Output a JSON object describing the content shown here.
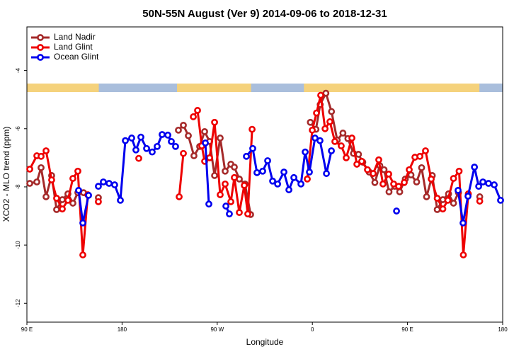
{
  "chart_data": {
    "type": "line",
    "title": "50N-55N August (Ver 9)   2014-09-06 to 2018-12-31",
    "x_label": "Longitude",
    "y_label": "XCO2 - MLO trend (ppm)",
    "xlim": [
      90,
      540
    ],
    "xticks": [
      {
        "value": 90,
        "label": "90 E"
      },
      180,
      {
        "value": 270,
        "label": "90 W"
      },
      {
        "value": 360,
        "label": "0"
      },
      {
        "value": 450,
        "label": "90 E"
      },
      {
        "value": 540,
        "label": "180"
      }
    ],
    "ylim": [
      -12.65,
      -2.5
    ],
    "yticks": [
      -4,
      -6,
      -8,
      -10,
      -12
    ],
    "legend": "top-left",
    "series": [
      {
        "name": "Land Nadir",
        "color": "#a52a2a",
        "x": [
          92.7,
          99.4,
          103.4,
          108.1,
          113.4,
          118.1,
          123.5,
          128.8,
          133.5,
          138.2,
          143.6,
          null,
          157.6,
          null,
          233.3,
          238.0,
          242.7,
          248.0,
          253.4,
          258.1,
          262.8,
          267.5,
          272.8,
          277.5,
          282.9,
          286.2,
          290.9,
          296.3,
          301.6,
          null,
          358.1,
          363.4,
          367.4,
          372.8,
          378.1,
          383.5,
          388.9,
          393.6,
          398.9,
          403.6,
          407.7,
          413.7,
          419.1,
          423.8,
          427.8,
          432.5,
          437.9,
          442.6,
          447.9,
          453.3,
          458.6,
          463.3,
          468.0,
          473.4,
          478.1,
          483.4,
          488.8,
          493.5,
          498.2,
          null,
          518.3
        ],
        "values": [
          -7.88,
          -7.83,
          -7.34,
          -8.34,
          -7.61,
          -8.78,
          -8.44,
          -8.24,
          -8.56,
          -8.2,
          -8.2,
          null,
          -8.37,
          null,
          -6.05,
          -5.88,
          -6.24,
          -6.93,
          -6.61,
          -6.1,
          -6.44,
          -7.61,
          -6.32,
          -7.46,
          -7.22,
          -7.32,
          -7.73,
          -7.9,
          -8.95,
          null,
          -5.78,
          -6.02,
          -5.17,
          -4.78,
          -5.41,
          -6.39,
          -6.15,
          -6.34,
          -6.85,
          -6.88,
          -7.15,
          -7.49,
          -7.85,
          -7.27,
          -7.41,
          -8.17,
          -7.98,
          -8.17,
          -7.73,
          -7.59,
          -7.83,
          -7.34,
          -8.34,
          -7.61,
          -8.78,
          -8.44,
          -8.24,
          -8.56,
          -8.2,
          null,
          -8.34
        ]
      },
      {
        "name": "Land Glint",
        "color": "#ee0000",
        "x": [
          92.7,
          99.4,
          103.4,
          108.1,
          113.4,
          118.1,
          123.5,
          128.8,
          133.5,
          138.2,
          142.9,
          147.6,
          null,
          157.6,
          null,
          195.8,
          null,
          234.0,
          238.0,
          null,
          247.4,
          251.4,
          255.4,
          258.1,
          262.8,
          267.5,
          272.8,
          277.5,
          282.9,
          286.2,
          290.9,
          295.6,
          298.9,
          303.0,
          null,
          355.2,
          359.9,
          363.9,
          367.9,
          372.0,
          376.6,
          381.3,
          387.3,
          392.0,
          397.4,
          402.1,
          406.7,
          412.1,
          417.5,
          422.8,
          426.8,
          432.2,
          436.9,
          441.6,
          446.9,
          451.6,
          457.0,
          461.7,
          467.0,
          472.4,
          478.1,
          483.4,
          488.1,
          493.5,
          498.8,
          502.8,
          507.5,
          null,
          518.3
        ],
        "values": [
          -7.39,
          -6.93,
          -6.95,
          -6.76,
          -7.76,
          -8.39,
          -8.76,
          -8.46,
          -7.71,
          -7.46,
          -10.34,
          -8.27,
          null,
          -8.51,
          null,
          -7.02,
          null,
          -8.34,
          -6.85,
          null,
          -5.59,
          -5.37,
          -6.59,
          -7.12,
          -7.0,
          -5.78,
          -8.27,
          -7.9,
          -8.51,
          -7.68,
          -8.88,
          -7.95,
          -8.93,
          -6.02,
          null,
          -7.73,
          -6.05,
          -5.46,
          -4.85,
          -6.0,
          -5.76,
          -6.44,
          -6.59,
          -7.0,
          -6.32,
          -7.22,
          -7.12,
          -7.41,
          -7.54,
          -7.07,
          -7.9,
          -7.56,
          -7.9,
          -7.98,
          -7.85,
          -7.41,
          -6.98,
          -6.95,
          -6.76,
          -7.73,
          -8.39,
          -8.76,
          -8.46,
          -7.71,
          -7.46,
          -10.34,
          -8.24,
          null,
          -8.49
        ]
      },
      {
        "name": "Ocean Glint",
        "color": "#0000ee",
        "x": [
          138.9,
          142.9,
          148.3,
          null,
          157.6,
          162.3,
          167.7,
          173.0,
          178.4,
          183.1,
          189.1,
          193.1,
          197.8,
          203.2,
          208.5,
          213.2,
          217.9,
          223.3,
          226.6,
          230.6,
          null,
          258.8,
          262.1,
          null,
          278.2,
          281.5,
          null,
          297.6,
          303.6,
          307.6,
          313.0,
          317.7,
          322.4,
          327.1,
          333.1,
          337.8,
          342.5,
          349.2,
          353.2,
          357.2,
          362.5,
          367.2,
          373.3,
          378.0,
          null,
          439.6,
          null,
          497.8,
          502.5,
          507.2,
          513.3,
          517.3,
          521.3,
          526.6,
          532.0,
          538.0
        ],
        "values": [
          -8.12,
          -9.24,
          -8.29,
          null,
          -7.98,
          -7.83,
          -7.88,
          -7.93,
          -8.46,
          -6.41,
          -6.32,
          -6.73,
          -6.29,
          -6.68,
          -6.8,
          -6.61,
          -6.2,
          -6.22,
          -6.44,
          -6.61,
          null,
          -6.49,
          -8.59,
          null,
          -8.66,
          -8.93,
          null,
          -6.95,
          -6.68,
          -7.51,
          -7.46,
          -7.1,
          -7.8,
          -7.9,
          -7.49,
          -8.1,
          -7.68,
          -7.9,
          -6.8,
          -7.49,
          -6.32,
          -6.41,
          -7.54,
          -6.76,
          null,
          -8.83,
          null,
          -8.12,
          -9.24,
          -8.32,
          -7.32,
          -7.98,
          -7.83,
          -7.88,
          -7.93,
          -8.46
        ]
      }
    ]
  }
}
